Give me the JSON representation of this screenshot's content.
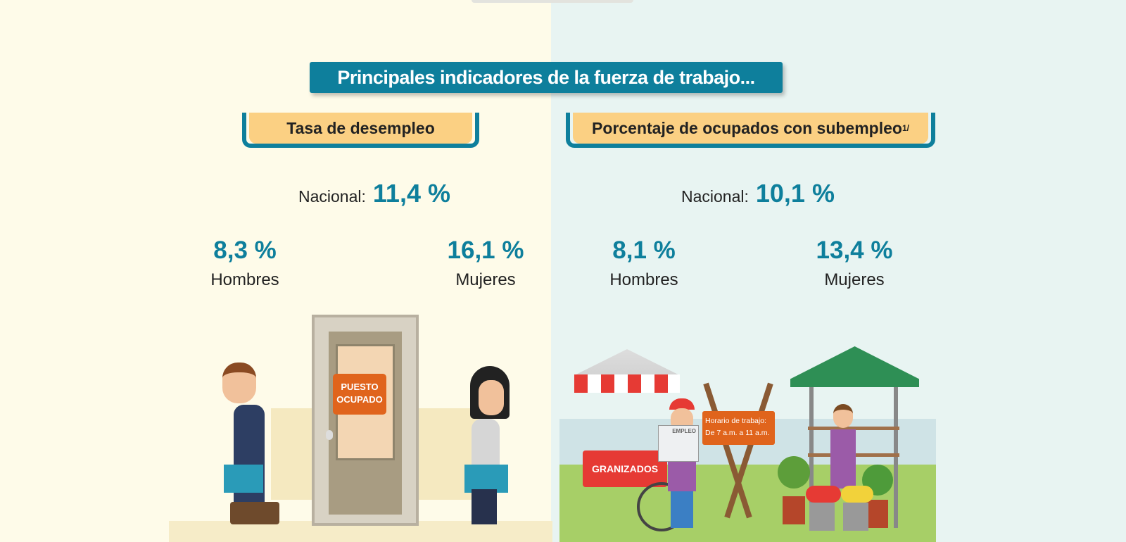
{
  "title": "Principales indicadores de la fuerza de trabajo...",
  "left": {
    "header": "Tasa de desempleo",
    "national_label": "Nacional:",
    "national_value": "11,4 %",
    "men_value": "8,3 %",
    "men_label": "Hombres",
    "women_value": "16,1 %",
    "women_label": "Mujeres",
    "sign": [
      "PUESTO",
      "OCUPADO"
    ]
  },
  "right": {
    "header": "Porcentaje de ocupados con subempleo",
    "header_note": "1/",
    "national_label": "Nacional:",
    "national_value": "10,1 %",
    "men_value": "8,1 %",
    "men_label": "Hombres",
    "women_value": "13,4 %",
    "women_label": "Mujeres",
    "cart_label": "GRANIZADOS",
    "newspaper": "EMPLEO",
    "schedule": [
      "Horario de trabajo:",
      "De 7 a.m. a 11 a.m."
    ]
  },
  "colors": {
    "teal": "#0e7f9c",
    "header": "#fbd083",
    "orange": "#e0641c"
  }
}
